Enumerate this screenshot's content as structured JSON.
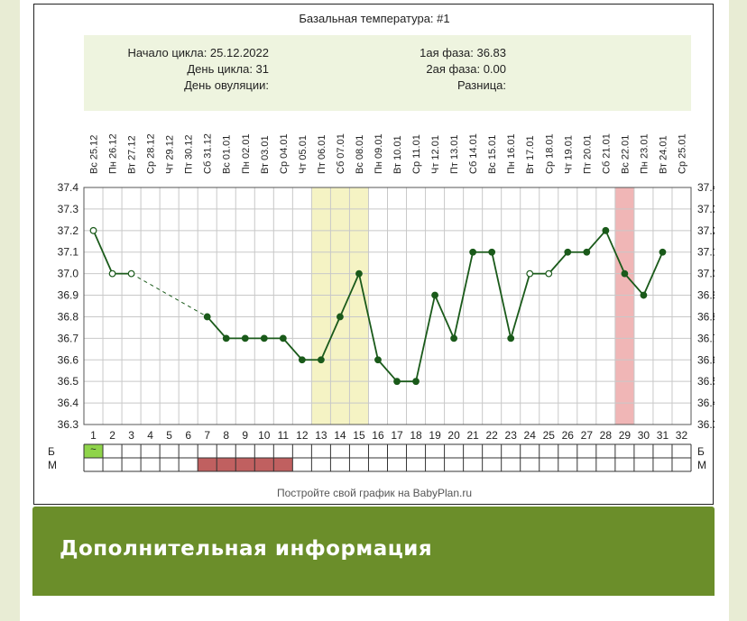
{
  "chart_data": {
    "type": "line",
    "title": "Базальная температура: #1",
    "summary": {
      "cycle_start": "Начало цикла: 25.12.2022",
      "cycle_day": "День цикла: 31",
      "ovulation_day": "День овуляции:",
      "phase1": "1ая фаза: 36.83",
      "phase2": "2ая фаза: 0.00",
      "difference": "Разница:"
    },
    "dates": [
      "Вс 25.12",
      "Пн 26.12",
      "Вт 27.12",
      "Ср 28.12",
      "Чт 29.12",
      "Пт 30.12",
      "Сб 31.12",
      "Вс 01.01",
      "Пн 02.01",
      "Вт 03.01",
      "Ср 04.01",
      "Чт 05.01",
      "Пт 06.01",
      "Сб 07.01",
      "Вс 08.01",
      "Пн 09.01",
      "Вт 10.01",
      "Ср 11.01",
      "Чт 12.01",
      "Пт 13.01",
      "Сб 14.01",
      "Вс 15.01",
      "Пн 16.01",
      "Вт 17.01",
      "Ср 18.01",
      "Чт 19.01",
      "Пт 20.01",
      "Сб 21.01",
      "Вс 22.01",
      "Пн 23.01",
      "Вт 24.01",
      "Ср 25.01"
    ],
    "x": [
      1,
      2,
      3,
      4,
      5,
      6,
      7,
      8,
      9,
      10,
      11,
      12,
      13,
      14,
      15,
      16,
      17,
      18,
      19,
      20,
      21,
      22,
      23,
      24,
      25,
      26,
      27,
      28,
      29,
      30,
      31,
      32
    ],
    "y": [
      37.2,
      37.0,
      37.0,
      null,
      null,
      null,
      36.8,
      36.7,
      36.7,
      36.7,
      36.7,
      36.6,
      36.6,
      36.8,
      37.0,
      36.6,
      36.5,
      36.5,
      36.9,
      36.7,
      37.1,
      37.1,
      36.7,
      37.0,
      37.0,
      37.1,
      37.1,
      37.2,
      37.0,
      36.9,
      37.1,
      null
    ],
    "open_points": [
      1,
      2,
      3,
      24,
      25
    ],
    "ylim": [
      36.3,
      37.4
    ],
    "yticks": [
      "37.4",
      "37.3",
      "37.2",
      "37.1",
      "37.0",
      "36.9",
      "36.8",
      "36.7",
      "36.6",
      "36.5",
      "36.4",
      "36.3"
    ],
    "highlight_yellow": [
      13,
      15
    ],
    "highlight_red": [
      29,
      29
    ],
    "row_labels": [
      "Б",
      "М"
    ],
    "b_marked_day": 1,
    "b_marked_symbol": "~",
    "m_range": [
      7,
      11
    ],
    "footer": "Постройте свой график на BabyPlan.ru",
    "colors": {
      "line": "#1a5a1a",
      "grid": "#c8c8c8",
      "yellow": "#f5f3c4",
      "red": "#f0b6b6",
      "summary_bg": "#eef4df",
      "b_mark": "#8fd44a",
      "m_bar": "#c06060"
    }
  },
  "info": {
    "title": "Дополнительная информация"
  }
}
